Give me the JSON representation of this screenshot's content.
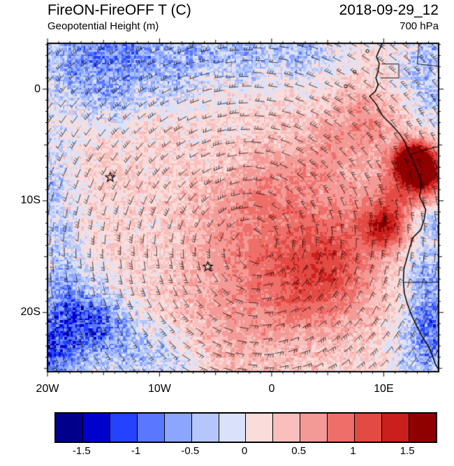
{
  "header": {
    "title": "FireON-FireOFF T (C)",
    "datetime": "2018-09-29_12",
    "subtitle": "Geopotential Height (m)",
    "level": "700 hPa"
  },
  "chart_data": {
    "type": "heatmap",
    "title": "FireON-FireOFF T (C)",
    "subtitle_overlay": "Geopotential Height (m)",
    "pressure_level": "700 hPa",
    "valid_datetime": "2018-09-29_12",
    "units": "C",
    "projection": "lat-lon",
    "overlays": [
      "wind-barbs",
      "coastline",
      "country-borders",
      "station-stars"
    ],
    "lon_range": [
      -20,
      14.9
    ],
    "lat_range": [
      -25.3,
      4.1
    ],
    "x_ticks": [
      {
        "value": -20,
        "label": "20W"
      },
      {
        "value": -10,
        "label": "10W"
      },
      {
        "value": 0,
        "label": "0"
      },
      {
        "value": 10,
        "label": "10E"
      }
    ],
    "y_ticks": [
      {
        "value": 0,
        "label": "0"
      },
      {
        "value": -10,
        "label": "10S"
      },
      {
        "value": -20,
        "label": "20S"
      }
    ],
    "colorbar": {
      "levels_start": -1.75,
      "levels_step": 0.25,
      "colors": [
        "#00008b",
        "#0000cd",
        "#2442ff",
        "#5a78ff",
        "#8ca6ff",
        "#b4c6fa",
        "#d9e2fa",
        "#fadcda",
        "#f8bfbc",
        "#f49a96",
        "#ee6f6a",
        "#e24a44",
        "#c9201d",
        "#8f0000"
      ],
      "tick_values": [
        -1.5,
        -1,
        -0.5,
        0,
        0.5,
        1,
        1.5
      ],
      "tick_labels": [
        "-1.5",
        "-1",
        "-0.5",
        "0",
        "0.5",
        "1",
        "1.5"
      ]
    },
    "markers": [
      {
        "name": "ascension-island",
        "lon": -14.4,
        "lat": -7.9
      },
      {
        "name": "st-helena",
        "lon": -5.7,
        "lat": -15.9
      }
    ],
    "field": {
      "base": 0.2,
      "noise_amp_cold": 0.38,
      "noise_amp_mid": 0.22,
      "noise_amp_warm": 0.12,
      "blobs": [
        [
          -17.5,
          2.0,
          2.8,
          -0.65
        ],
        [
          -12.5,
          3.2,
          2.2,
          -0.55
        ],
        [
          -9.0,
          1.0,
          1.8,
          -0.4
        ],
        [
          -14.0,
          -1.0,
          1.6,
          -0.35
        ],
        [
          -2.5,
          3.2,
          1.8,
          -0.45
        ],
        [
          2.5,
          3.0,
          1.8,
          -0.4
        ],
        [
          -6.5,
          3.5,
          1.5,
          -0.3
        ],
        [
          -6.0,
          5.0,
          4.5,
          -0.3
        ],
        [
          -16.0,
          5.5,
          3.5,
          -0.25
        ],
        [
          5.0,
          5.5,
          3.0,
          -0.25
        ],
        [
          -20.5,
          -9.5,
          2.0,
          -0.65
        ],
        [
          -19.0,
          -13.5,
          1.5,
          -0.4
        ],
        [
          -20.0,
          -5.0,
          1.5,
          -0.35
        ],
        [
          -20.5,
          -23.0,
          3.2,
          -1.25
        ],
        [
          -16.0,
          -20.5,
          2.0,
          -0.85
        ],
        [
          -18.5,
          -17.0,
          1.7,
          -0.45
        ],
        [
          -12.5,
          -23.0,
          2.0,
          -0.5
        ],
        [
          -9.0,
          -25.0,
          2.2,
          -0.4
        ],
        [
          14.6,
          -12.0,
          1.4,
          -0.55
        ],
        [
          14.2,
          -16.5,
          1.7,
          -0.75
        ],
        [
          14.6,
          -20.5,
          1.7,
          -0.95
        ],
        [
          13.8,
          -24.0,
          2.0,
          -0.75
        ],
        [
          14.8,
          -1.5,
          1.6,
          -0.55
        ],
        [
          12.8,
          1.8,
          1.6,
          -0.45
        ],
        [
          14.8,
          3.5,
          1.3,
          -0.5
        ],
        [
          12.6,
          -6.4,
          1.2,
          1.9
        ],
        [
          13.9,
          -7.9,
          1.5,
          1.15
        ],
        [
          10.1,
          -12.4,
          1.3,
          1.0
        ],
        [
          6.5,
          -13.5,
          3.2,
          0.5
        ],
        [
          1.5,
          -15.5,
          3.8,
          0.45
        ],
        [
          -3.5,
          -12.5,
          3.5,
          0.3
        ],
        [
          4.5,
          -18.0,
          3.0,
          0.45
        ],
        [
          -3.0,
          -21.0,
          3.8,
          0.3
        ],
        [
          8.5,
          -3.0,
          2.2,
          0.45
        ],
        [
          5.0,
          -6.0,
          2.6,
          0.35
        ],
        [
          0.0,
          -8.5,
          2.5,
          0.3
        ],
        [
          11.0,
          -9.5,
          1.6,
          0.6
        ]
      ]
    },
    "wind": {
      "style": "barbs",
      "gyre_center": [
        -1.5,
        -14.0
      ],
      "rotation": "counterclockwise"
    },
    "coastline": [
      [
        9.9,
        4.1
      ],
      [
        9.6,
        3.5
      ],
      [
        9.35,
        2.9
      ],
      [
        9.6,
        2.3
      ],
      [
        9.5,
        1.6
      ],
      [
        9.3,
        1.0
      ],
      [
        9.5,
        0.4
      ],
      [
        9.25,
        -0.2
      ],
      [
        8.75,
        -0.65
      ],
      [
        9.3,
        -1.3
      ],
      [
        9.9,
        -2.4
      ],
      [
        10.8,
        -3.3
      ],
      [
        11.5,
        -4.1
      ],
      [
        11.9,
        -4.75
      ],
      [
        12.25,
        -5.7
      ],
      [
        12.55,
        -6.3
      ],
      [
        13.1,
        -7.6
      ],
      [
        13.35,
        -8.7
      ],
      [
        13.2,
        -9.6
      ],
      [
        13.75,
        -10.8
      ],
      [
        13.6,
        -11.7
      ],
      [
        13.3,
        -12.6
      ],
      [
        12.6,
        -13.3
      ],
      [
        12.3,
        -14.3
      ],
      [
        12.05,
        -15.2
      ],
      [
        11.8,
        -16.1
      ],
      [
        11.75,
        -17.2
      ],
      [
        11.85,
        -18.3
      ],
      [
        12.1,
        -19.2
      ],
      [
        12.5,
        -20.3
      ],
      [
        13.0,
        -21.3
      ],
      [
        13.45,
        -22.2
      ],
      [
        14.05,
        -23.1
      ],
      [
        14.35,
        -23.9
      ],
      [
        14.65,
        -24.7
      ],
      [
        14.9,
        -25.1
      ]
    ],
    "borders": [
      [
        [
          9.8,
          2.25
        ],
        [
          11.35,
          2.25
        ],
        [
          11.35,
          1.0
        ],
        [
          9.7,
          1.0
        ]
      ],
      [
        [
          13.15,
          4.1
        ],
        [
          13.0,
          2.25
        ],
        [
          14.9,
          2.05
        ]
      ],
      [
        [
          12.4,
          -5.85
        ],
        [
          13.7,
          -5.4
        ],
        [
          14.9,
          -5.15
        ]
      ],
      [
        [
          11.78,
          -17.3
        ],
        [
          14.9,
          -17.3
        ]
      ]
    ],
    "islands": [
      {
        "name": "sao-tome",
        "lon": 6.6,
        "lat": 0.25
      },
      {
        "name": "principe",
        "lon": 7.4,
        "lat": 1.55
      },
      {
        "name": "bioko",
        "lon": 8.55,
        "lat": 3.4
      }
    ]
  }
}
